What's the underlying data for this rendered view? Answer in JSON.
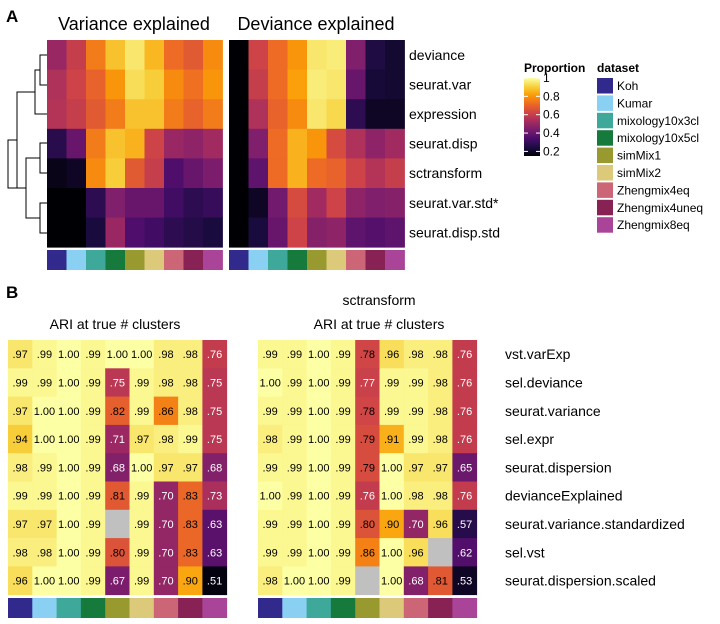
{
  "panel_labels": [
    "A",
    "B"
  ],
  "colors": {
    "viridis_inferno": [
      "#000004",
      "#1b0c41",
      "#4a0c6b",
      "#781c6d",
      "#a52c60",
      "#cf4446",
      "#ed6925",
      "#fb9b06",
      "#f7d13d",
      "#fcffa4"
    ],
    "gray_na": "#c0c0c0"
  },
  "dataset_legend": {
    "title": "dataset",
    "items": [
      {
        "name": "Koh",
        "color": "#312a8c"
      },
      {
        "name": "Kumar",
        "color": "#8ad0f2"
      },
      {
        "name": "mixology10x3cl",
        "color": "#3ea89a"
      },
      {
        "name": "mixology10x5cl",
        "color": "#157a3c"
      },
      {
        "name": "simMix1",
        "color": "#98992e"
      },
      {
        "name": "simMix2",
        "color": "#dcc97a"
      },
      {
        "name": "Zhengmix4eq",
        "color": "#cc6677"
      },
      {
        "name": "Zhengmix4uneq",
        "color": "#882255"
      },
      {
        "name": "Zhengmix8eq",
        "color": "#aa4499"
      }
    ]
  },
  "proportion_legend": {
    "title": "Proportion",
    "ticks": [
      "1",
      "0.8",
      "0.6",
      "0.4",
      "0.2"
    ]
  },
  "chart_data": [
    {
      "type": "heatmap",
      "panel": "A",
      "title": "Variance explained",
      "rows": [
        "deviance",
        "seurat.var",
        "expression",
        "seurat.disp",
        "sctransform",
        "seurat.var.std*",
        "seurat.disp.std"
      ],
      "columns": [
        "Koh",
        "Kumar",
        "mixology10x3cl",
        "mixology10x5cl",
        "simMix1",
        "simMix2",
        "Zhengmix4eq",
        "Zhengmix4uneq",
        "Zhengmix8eq"
      ],
      "values": [
        [
          0.5,
          0.6,
          0.75,
          0.88,
          0.95,
          0.86,
          0.72,
          0.68,
          0.78
        ],
        [
          0.55,
          0.62,
          0.7,
          0.8,
          0.93,
          0.9,
          0.78,
          0.73,
          0.8
        ],
        [
          0.56,
          0.6,
          0.68,
          0.75,
          0.88,
          0.88,
          0.75,
          0.7,
          0.75
        ],
        [
          0.27,
          0.4,
          0.75,
          0.88,
          0.85,
          0.62,
          0.5,
          0.48,
          0.52
        ],
        [
          0.18,
          0.2,
          0.78,
          0.9,
          0.68,
          0.6,
          0.35,
          0.4,
          0.44
        ],
        [
          0.12,
          0.14,
          0.28,
          0.45,
          0.4,
          0.4,
          0.32,
          0.28,
          0.3
        ],
        [
          0.06,
          0.08,
          0.24,
          0.5,
          0.35,
          0.32,
          0.28,
          0.26,
          0.24
        ]
      ],
      "scale": [
        0.15,
        1.0
      ]
    },
    {
      "type": "heatmap",
      "panel": "A",
      "title": "Deviance explained",
      "rows": [
        "deviance",
        "seurat.var",
        "expression",
        "seurat.disp",
        "sctransform",
        "seurat.var.std*",
        "seurat.disp.std"
      ],
      "columns": [
        "Koh",
        "Kumar",
        "mixology10x3cl",
        "mixology10x5cl",
        "simMix1",
        "simMix2",
        "Zhengmix4eq",
        "Zhengmix4uneq",
        "Zhengmix8eq"
      ],
      "values": [
        [
          0.05,
          0.62,
          0.72,
          0.8,
          0.95,
          0.96,
          0.45,
          0.25,
          0.22
        ],
        [
          0.05,
          0.6,
          0.72,
          0.82,
          0.96,
          0.95,
          0.4,
          0.23,
          0.22
        ],
        [
          0.05,
          0.55,
          0.7,
          0.78,
          0.95,
          0.92,
          0.28,
          0.2,
          0.2
        ],
        [
          0.05,
          0.45,
          0.72,
          0.85,
          0.8,
          0.64,
          0.55,
          0.48,
          0.52
        ],
        [
          0.04,
          0.38,
          0.72,
          0.85,
          0.72,
          0.7,
          0.62,
          0.56,
          0.6
        ],
        [
          0.06,
          0.2,
          0.42,
          0.64,
          0.52,
          0.62,
          0.48,
          0.45,
          0.46
        ],
        [
          0.04,
          0.24,
          0.4,
          0.62,
          0.46,
          0.48,
          0.38,
          0.36,
          0.38
        ]
      ],
      "scale": [
        0.15,
        1.0
      ]
    },
    {
      "type": "heatmap",
      "panel": "B",
      "subtitle": "",
      "title": "ARI at true # clusters",
      "rows": [
        "vst.varExp",
        "sel.deviance",
        "seurat.variance",
        "sel.expr",
        "seurat.dispersion",
        "devianceExplained",
        "seurat.variance.standardized",
        "sel.vst",
        "seurat.dispersion.scaled"
      ],
      "columns": [
        "Koh",
        "Kumar",
        "mixology10x3cl",
        "mixology10x5cl",
        "simMix1",
        "simMix2",
        "Zhengmix4eq",
        "Zhengmix4uneq",
        "Zhengmix8eq"
      ],
      "labels": [
        [
          ".97",
          ".99",
          "1.00",
          ".99",
          "1.00",
          "1.00",
          ".98",
          ".98",
          ".76"
        ],
        [
          ".99",
          ".99",
          "1.00",
          ".99",
          ".75",
          ".99",
          ".98",
          ".98",
          ".75"
        ],
        [
          ".97",
          "1.00",
          "1.00",
          ".99",
          ".82",
          ".99",
          ".86",
          ".98",
          ".75"
        ],
        [
          ".94",
          "1.00",
          "1.00",
          ".99",
          ".71",
          ".97",
          ".98",
          ".99",
          ".75"
        ],
        [
          ".98",
          ".99",
          "1.00",
          ".99",
          ".68",
          "1.00",
          ".97",
          ".97",
          ".68"
        ],
        [
          ".99",
          ".99",
          "1.00",
          ".99",
          ".81",
          ".99",
          ".70",
          ".83",
          ".73"
        ],
        [
          ".97",
          ".97",
          "1.00",
          ".99",
          "",
          ".99",
          ".70",
          ".83",
          ".63"
        ],
        [
          ".98",
          ".98",
          "1.00",
          ".99",
          ".80",
          ".99",
          ".70",
          ".83",
          ".63"
        ],
        [
          ".96",
          "1.00",
          "1.00",
          ".99",
          ".67",
          ".99",
          ".70",
          ".90",
          ".51"
        ]
      ],
      "values": [
        [
          0.97,
          0.99,
          1.0,
          0.99,
          1.0,
          1.0,
          0.98,
          0.98,
          0.76
        ],
        [
          0.99,
          0.99,
          1.0,
          0.99,
          0.75,
          0.99,
          0.98,
          0.98,
          0.75
        ],
        [
          0.97,
          1.0,
          1.0,
          0.99,
          0.82,
          0.99,
          0.86,
          0.98,
          0.75
        ],
        [
          0.94,
          1.0,
          1.0,
          0.99,
          0.71,
          0.97,
          0.98,
          0.99,
          0.75
        ],
        [
          0.98,
          0.99,
          1.0,
          0.99,
          0.68,
          1.0,
          0.97,
          0.97,
          0.68
        ],
        [
          0.99,
          0.99,
          1.0,
          0.99,
          0.81,
          0.99,
          0.7,
          0.83,
          0.73
        ],
        [
          0.97,
          0.97,
          1.0,
          0.99,
          null,
          0.99,
          0.7,
          0.83,
          0.63
        ],
        [
          0.98,
          0.98,
          1.0,
          0.99,
          0.8,
          0.99,
          0.7,
          0.83,
          0.63
        ],
        [
          0.96,
          1.0,
          1.0,
          0.99,
          0.67,
          0.99,
          0.7,
          0.9,
          0.51
        ]
      ],
      "scale": [
        0.5,
        1.0
      ]
    },
    {
      "type": "heatmap",
      "panel": "B",
      "subtitle": "sctransform",
      "title": "ARI at true # clusters",
      "rows": [
        "vst.varExp",
        "sel.deviance",
        "seurat.variance",
        "sel.expr",
        "seurat.dispersion",
        "devianceExplained",
        "seurat.variance.standardized",
        "sel.vst",
        "seurat.dispersion.scaled"
      ],
      "columns": [
        "Koh",
        "Kumar",
        "mixology10x3cl",
        "mixology10x5cl",
        "simMix1",
        "simMix2",
        "Zhengmix4eq",
        "Zhengmix4uneq",
        "Zhengmix8eq"
      ],
      "labels": [
        [
          ".99",
          ".99",
          "1.00",
          ".99",
          ".78",
          ".96",
          ".98",
          ".98",
          ".76"
        ],
        [
          "1.00",
          ".99",
          "1.00",
          ".99",
          ".77",
          ".99",
          ".99",
          ".98",
          ".76"
        ],
        [
          ".99",
          ".99",
          "1.00",
          ".99",
          ".78",
          ".99",
          ".99",
          ".98",
          ".76"
        ],
        [
          ".98",
          ".99",
          "1.00",
          ".99",
          ".79",
          ".91",
          ".99",
          ".98",
          ".76"
        ],
        [
          ".99",
          ".99",
          "1.00",
          ".99",
          ".79",
          "1.00",
          ".97",
          ".97",
          ".65"
        ],
        [
          "1.00",
          ".99",
          "1.00",
          ".99",
          ".76",
          "1.00",
          ".98",
          ".98",
          ".76"
        ],
        [
          ".99",
          ".99",
          "1.00",
          ".99",
          ".80",
          ".90",
          ".70",
          ".96",
          ".57"
        ],
        [
          ".99",
          ".99",
          "1.00",
          ".99",
          ".86",
          "1.00",
          ".96",
          "",
          ".62"
        ],
        [
          ".98",
          "1.00",
          "1.00",
          ".99",
          "",
          "1.00",
          ".68",
          ".81",
          ".53"
        ]
      ],
      "values": [
        [
          0.99,
          0.99,
          1.0,
          0.99,
          0.78,
          0.96,
          0.98,
          0.98,
          0.76
        ],
        [
          1.0,
          0.99,
          1.0,
          0.99,
          0.77,
          0.99,
          0.99,
          0.98,
          0.76
        ],
        [
          0.99,
          0.99,
          1.0,
          0.99,
          0.78,
          0.99,
          0.99,
          0.98,
          0.76
        ],
        [
          0.98,
          0.99,
          1.0,
          0.99,
          0.79,
          0.91,
          0.99,
          0.98,
          0.76
        ],
        [
          0.99,
          0.99,
          1.0,
          0.99,
          0.79,
          1.0,
          0.97,
          0.97,
          0.65
        ],
        [
          1.0,
          0.99,
          1.0,
          0.99,
          0.76,
          1.0,
          0.98,
          0.98,
          0.76
        ],
        [
          0.99,
          0.99,
          1.0,
          0.99,
          0.8,
          0.9,
          0.7,
          0.96,
          0.57
        ],
        [
          0.99,
          0.99,
          1.0,
          0.99,
          0.86,
          1.0,
          0.96,
          null,
          0.62
        ],
        [
          0.98,
          1.0,
          1.0,
          0.99,
          null,
          1.0,
          0.68,
          0.81,
          0.53
        ]
      ],
      "scale": [
        0.5,
        1.0
      ]
    }
  ]
}
